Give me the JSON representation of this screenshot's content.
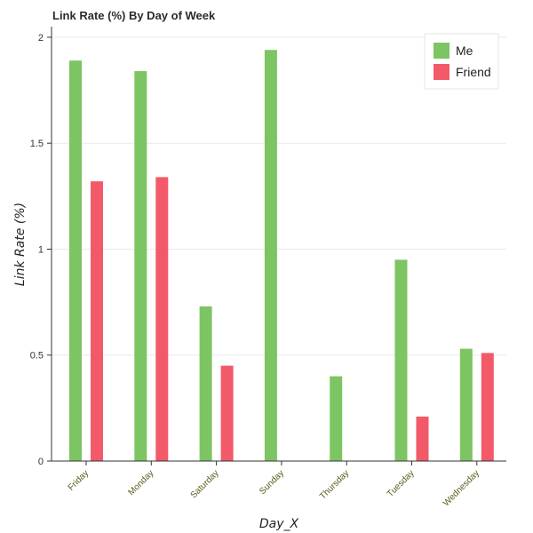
{
  "chart_data": {
    "type": "bar",
    "title": "Link Rate (%) By Day of Week",
    "xlabel": "Day_X",
    "ylabel": "Link Rate (%)",
    "categories": [
      "Friday",
      "Monday",
      "Saturday",
      "Sunday",
      "Thursday",
      "Tuesday",
      "Wednesday"
    ],
    "series": [
      {
        "name": "Me",
        "color": "#7dc462",
        "values": [
          1.89,
          1.84,
          0.73,
          1.94,
          0.4,
          0.95,
          0.53
        ]
      },
      {
        "name": "Friend",
        "color": "#f25a6a",
        "values": [
          1.32,
          1.34,
          0.45,
          null,
          null,
          0.21,
          0.51
        ]
      }
    ],
    "ylim": [
      0,
      2.05
    ],
    "yticks": [
      0,
      0.5,
      1,
      1.5,
      2
    ],
    "ytick_labels": [
      "0",
      "0.5",
      "1",
      "1.5",
      "2"
    ],
    "grid": true,
    "legend_position": "top-right"
  }
}
